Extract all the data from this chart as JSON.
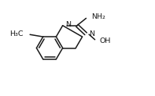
{
  "bg_color": "#ffffff",
  "line_color": "#1a1a1a",
  "line_width": 1.1,
  "font_size": 6.8,
  "atoms": {
    "H3C": "H₃C",
    "N": "N",
    "NH2": "NH₂",
    "OH": "OH"
  }
}
